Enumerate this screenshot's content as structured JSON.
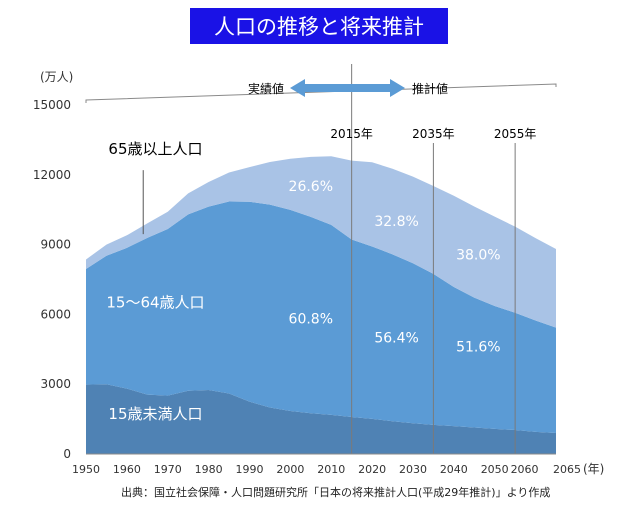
{
  "title": "人口の推移と将来推計",
  "source_note": "出典：国立社会保障・人口問題研究所「日本の将来推計人口(平成29年推計)」より作成",
  "timeline": {
    "actual_label": "実績値",
    "projection_label": "推計値"
  },
  "colors": {
    "under15": "#4f82b4",
    "age15_64": "#5b9bd5",
    "age65plus": "#a9c3e6",
    "title_bg": "#1a12e6",
    "arrow": "#5b9bd5"
  },
  "chart_data": {
    "type": "area",
    "title": "",
    "xlabel": "(年)",
    "ylabel": "(万人)",
    "xlim": [
      1950,
      2065
    ],
    "ylim": [
      0,
      15000
    ],
    "x_ticks": [
      1950,
      1960,
      1970,
      1980,
      1990,
      2000,
      2010,
      2020,
      2030,
      2040,
      2050,
      2060,
      2065
    ],
    "y_ticks": [
      0,
      3000,
      6000,
      9000,
      12000,
      15000
    ],
    "stacked": true,
    "x": [
      1950,
      1955,
      1960,
      1965,
      1970,
      1975,
      1980,
      1985,
      1990,
      1995,
      2000,
      2005,
      2010,
      2015,
      2020,
      2025,
      2030,
      2035,
      2040,
      2045,
      2050,
      2055,
      2060,
      2065
    ],
    "series": [
      {
        "name": "15歳未満人口",
        "values": [
          2980,
          3000,
          2810,
          2550,
          2510,
          2720,
          2750,
          2600,
          2250,
          2000,
          1850,
          1750,
          1680,
          1590,
          1510,
          1410,
          1320,
          1250,
          1200,
          1140,
          1080,
          1030,
          950,
          900
        ]
      },
      {
        "name": "15〜64歳人口",
        "values": [
          4970,
          5520,
          6050,
          6740,
          7160,
          7580,
          7880,
          8250,
          8590,
          8720,
          8640,
          8440,
          8170,
          7630,
          7410,
          7170,
          6880,
          6490,
          5980,
          5580,
          5280,
          5040,
          4790,
          4530
        ]
      },
      {
        "name": "65歳以上人口",
        "values": [
          410,
          480,
          540,
          620,
          740,
          900,
          1060,
          1250,
          1490,
          1830,
          2200,
          2580,
          2950,
          3390,
          3620,
          3680,
          3720,
          3780,
          3920,
          3920,
          3840,
          3700,
          3540,
          3380
        ]
      }
    ],
    "annotations": {
      "vertical_lines": [
        {
          "x": 2015,
          "label": "2015年"
        },
        {
          "x": 2035,
          "label": "2035年"
        },
        {
          "x": 2055,
          "label": "2055年"
        }
      ],
      "percent_labels": [
        {
          "x": 2005,
          "y": 11300,
          "text": "26.6%"
        },
        {
          "x": 2026,
          "y": 9800,
          "text": "32.8%"
        },
        {
          "x": 2046,
          "y": 8350,
          "text": "38.0%"
        },
        {
          "x": 2005,
          "y": 5600,
          "text": "60.8%"
        },
        {
          "x": 2026,
          "y": 4800,
          "text": "56.4%"
        },
        {
          "x": 2046,
          "y": 4400,
          "text": "51.6%"
        }
      ],
      "series_labels": [
        {
          "x": 1967,
          "y": 12900,
          "text": "65歳以上人口"
        },
        {
          "x": 1967,
          "y": 6300,
          "text": "15〜64歳人口"
        },
        {
          "x": 1967,
          "y": 1500,
          "text": "15歳未満人口"
        }
      ],
      "leader_line": {
        "x": 1964,
        "y_from": 12200,
        "y_to": 9450
      }
    },
    "grid": false,
    "legend": "none"
  }
}
